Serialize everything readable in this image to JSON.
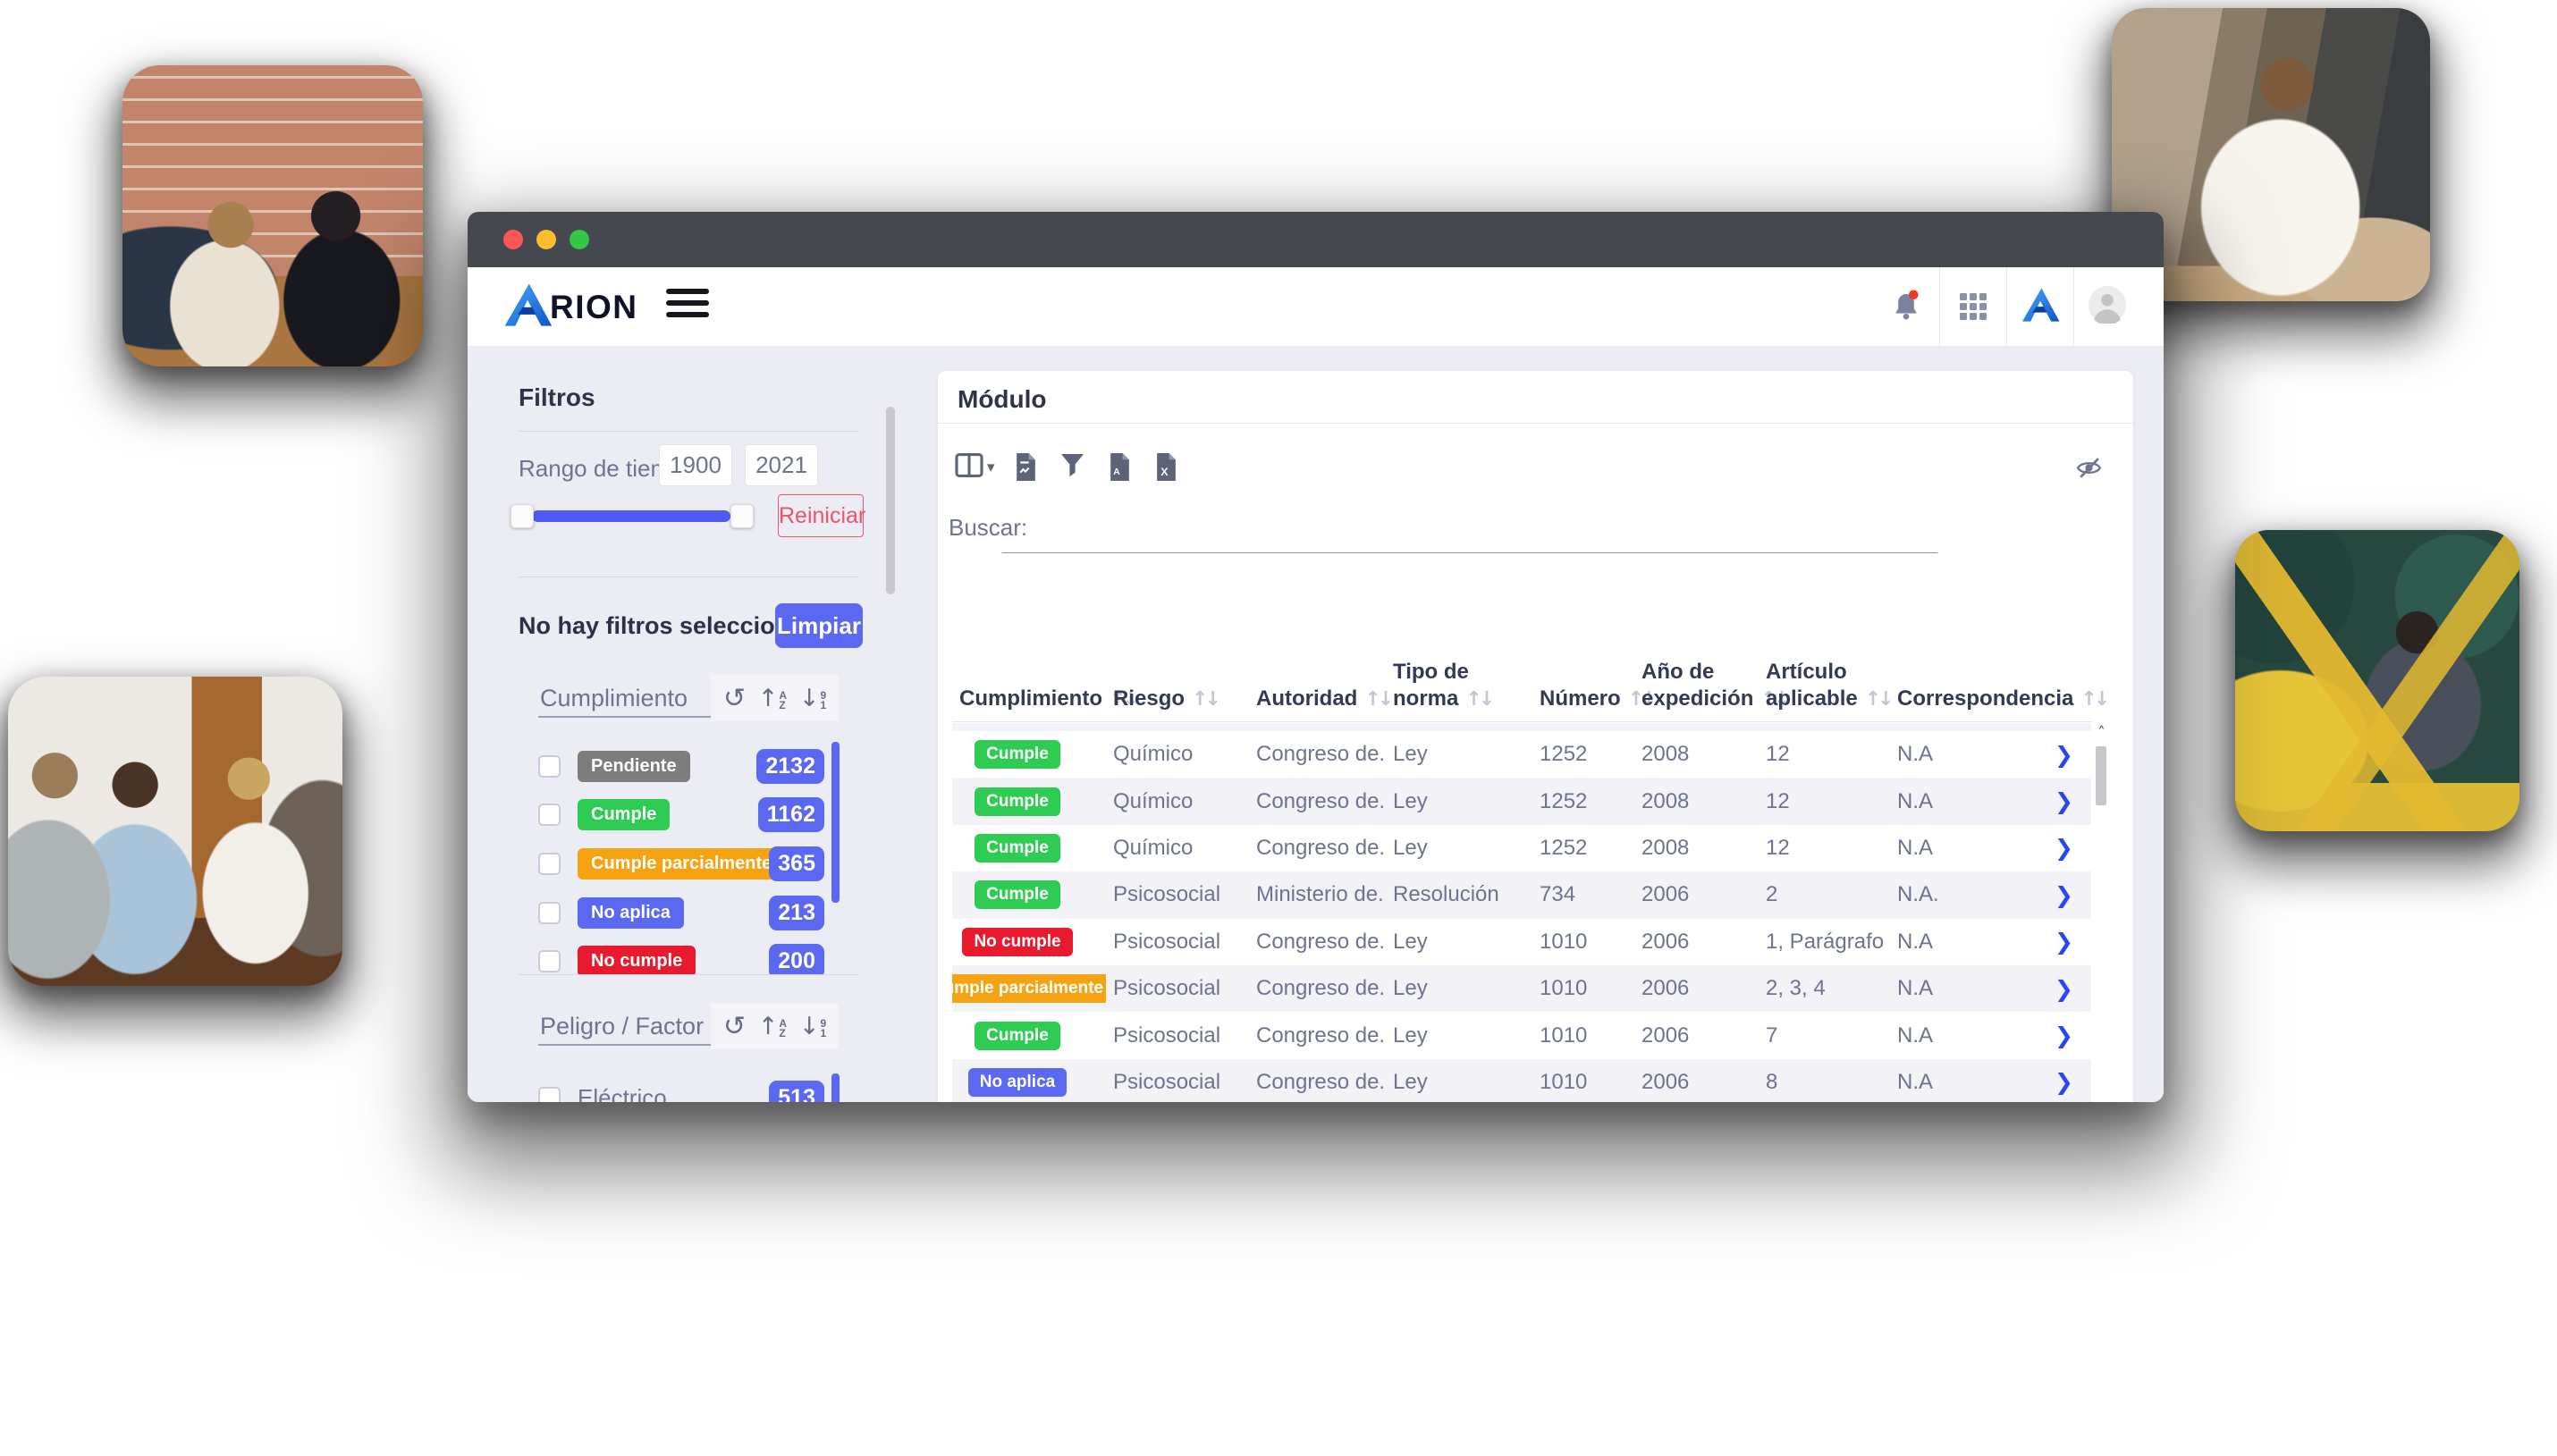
{
  "window": {
    "controls": {
      "close": "close",
      "minimize": "minimize",
      "maximize": "maximize"
    }
  },
  "brand": {
    "name": "ARION",
    "wordmark_suffix": "RION"
  },
  "sidebar": {
    "title": "Filtros",
    "time_range": {
      "label": "Rango de tiempo",
      "from": "1900",
      "to": "2021",
      "reset_label": "Reiniciar"
    },
    "selection": {
      "empty_text": "No hay filtros seleccionados",
      "clear_label": "Limpiar"
    },
    "groups": [
      {
        "label": "Cumplimiento",
        "items": [
          {
            "label": "Pendiente",
            "badge_color": "#7d7d7d",
            "count": "2132"
          },
          {
            "label": "Cumple",
            "badge_color": "#2ecc52",
            "count": "1162"
          },
          {
            "label": "Cumple parcialmente",
            "badge_color": "#f5a312",
            "count": "365"
          },
          {
            "label": "No aplica",
            "badge_color": "#5a68f2",
            "count": "213"
          },
          {
            "label": "No cumple",
            "badge_color": "#e81a2e",
            "count": "200"
          }
        ]
      },
      {
        "label": "Peligro / Factor de Ri",
        "items": [
          {
            "label": "Eléctrico",
            "badge_color": null,
            "count": "513"
          }
        ]
      }
    ]
  },
  "main": {
    "title": "Módulo",
    "search_label": "Buscar:",
    "search_value": "",
    "table": {
      "columns": [
        "Cumplimiento",
        "Riesgo",
        "Autoridad",
        "Tipo de norma",
        "Número",
        "Año de expedición",
        "Artículo aplicable",
        "Correspondencia"
      ],
      "rows": [
        {
          "cumplimiento": "Cumple",
          "riesgo": "Químico",
          "autoridad": "Congreso de...",
          "tipo_de_norma": "Ley",
          "numero": "1252",
          "ano_de_expedicion": "2008",
          "articulo_aplicable": "12",
          "correspondencia": "N.A"
        },
        {
          "cumplimiento": "Cumple",
          "riesgo": "Químico",
          "autoridad": "Congreso de...",
          "tipo_de_norma": "Ley",
          "numero": "1252",
          "ano_de_expedicion": "2008",
          "articulo_aplicable": "12",
          "correspondencia": "N.A"
        },
        {
          "cumplimiento": "Cumple",
          "riesgo": "Químico",
          "autoridad": "Congreso de...",
          "tipo_de_norma": "Ley",
          "numero": "1252",
          "ano_de_expedicion": "2008",
          "articulo_aplicable": "12",
          "correspondencia": "N.A"
        },
        {
          "cumplimiento": "Cumple",
          "riesgo": "Psicosocial",
          "autoridad": "Ministerio de...",
          "tipo_de_norma": "Resolución",
          "numero": "734",
          "ano_de_expedicion": "2006",
          "articulo_aplicable": "2",
          "correspondencia": "N.A."
        },
        {
          "cumplimiento": "No cumple",
          "riesgo": "Psicosocial",
          "autoridad": "Congreso de...",
          "tipo_de_norma": "Ley",
          "numero": "1010",
          "ano_de_expedicion": "2006",
          "articulo_aplicable": "1, Parágrafo",
          "correspondencia": "N.A"
        },
        {
          "cumplimiento": "Cumple parcialmente",
          "riesgo": "Psicosocial",
          "autoridad": "Congreso de...",
          "tipo_de_norma": "Ley",
          "numero": "1010",
          "ano_de_expedicion": "2006",
          "articulo_aplicable": "2, 3, 4",
          "correspondencia": "N.A"
        },
        {
          "cumplimiento": "Cumple",
          "riesgo": "Psicosocial",
          "autoridad": "Congreso de...",
          "tipo_de_norma": "Ley",
          "numero": "1010",
          "ano_de_expedicion": "2006",
          "articulo_aplicable": "7",
          "correspondencia": "N.A"
        },
        {
          "cumplimiento": "No aplica",
          "riesgo": "Psicosocial",
          "autoridad": "Congreso de...",
          "tipo_de_norma": "Ley",
          "numero": "1010",
          "ano_de_expedicion": "2006",
          "articulo_aplicable": "8",
          "correspondencia": "N.A"
        }
      ]
    }
  },
  "colors": {
    "accent_blue": "#5a68f2",
    "slider_blue": "#4e5bf2",
    "reset_pink": "#f4516c",
    "status": {
      "Cumple": "#2ecc52",
      "No cumple": "#e81a2e",
      "Cumple parcialmente": "#f5a312",
      "No aplica": "#5a68f2",
      "Pendiente": "#7d7d7d"
    }
  }
}
